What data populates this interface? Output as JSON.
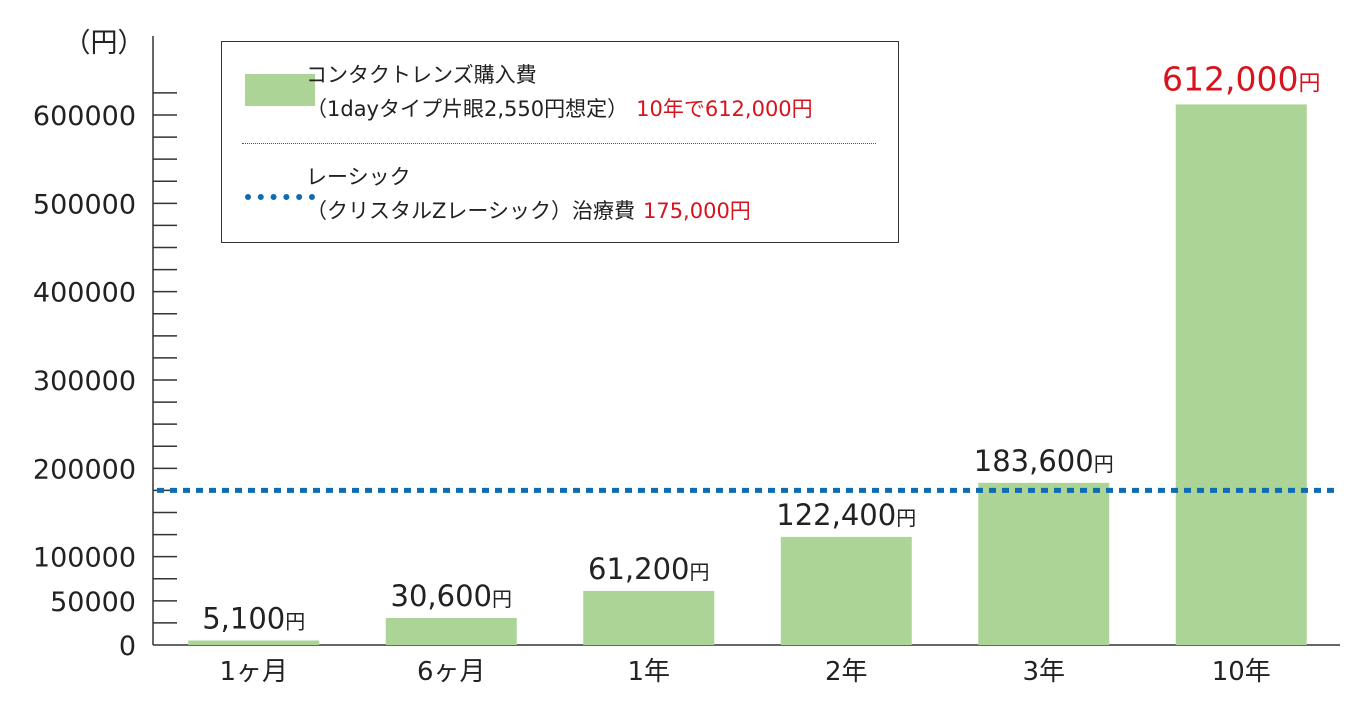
{
  "chart_data": {
    "type": "bar",
    "unit_label": "（円）",
    "categories": [
      "1ヶ月",
      "6ヶ月",
      "1年",
      "2年",
      "3年",
      "10年"
    ],
    "values": [
      5100,
      30600,
      61200,
      122400,
      183600,
      612000
    ],
    "data_labels": [
      "5,100",
      "30,600",
      "61,200",
      "122,400",
      "183,600",
      "612,000"
    ],
    "data_label_unit": "円",
    "highlight_index": 5,
    "y_ticks": [
      0,
      50000,
      100000,
      200000,
      300000,
      400000,
      500000,
      600000
    ],
    "ylim": [
      0,
      600000
    ],
    "reference_line": {
      "value": 175000,
      "style": "dotted",
      "color": "#0d6cb2"
    },
    "bar_color": "#abd496",
    "highlight_color": "#d7141d",
    "legend": {
      "placement": "top-left",
      "items": [
        {
          "line1": "コンタクトレンズ購入費",
          "line2": "（1dayタイプ片眼2,550円想定）",
          "note": "10年で612,000円"
        },
        {
          "line1": "レーシック",
          "line2": "（クリスタルZレーシック）治療費",
          "note": "175,000円"
        }
      ]
    }
  }
}
